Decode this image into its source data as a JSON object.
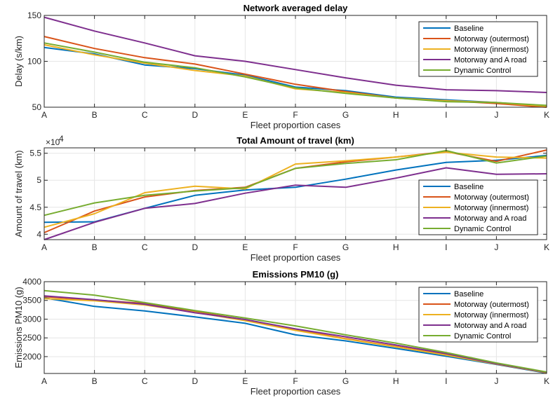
{
  "colors": {
    "series": [
      "#0072BD",
      "#D95319",
      "#EDB120",
      "#7E2F8E",
      "#77AC30"
    ],
    "grid": "#e6e6e6",
    "axis": "#262626"
  },
  "chart_data": [
    {
      "type": "line",
      "title": "Network averaged delay",
      "xlabel": "Fleet proportion cases",
      "ylabel": "Delay (s/km)",
      "categories": [
        "A",
        "B",
        "C",
        "D",
        "E",
        "F",
        "G",
        "H",
        "I",
        "J",
        "K"
      ],
      "ylim": [
        50,
        150
      ],
      "yticks": [
        50,
        100,
        150
      ],
      "yticklabels": [
        "50",
        "100",
        "150"
      ],
      "exponent_label": "",
      "grid": true,
      "legend_position": "top-right",
      "series": [
        {
          "name": "Baseline",
          "values": [
            115,
            108,
            96,
            92,
            85,
            72,
            68,
            61,
            58,
            55,
            51
          ]
        },
        {
          "name": "Motorway (outermost)",
          "values": [
            127,
            114,
            104,
            97,
            86,
            75,
            67,
            60,
            57,
            54,
            50
          ]
        },
        {
          "name": "Motorway (innermost)",
          "values": [
            118,
            107,
            98,
            90,
            84,
            70,
            66,
            60,
            57,
            55,
            51
          ]
        },
        {
          "name": "Motorway and A road",
          "values": [
            148,
            133,
            120,
            106,
            100,
            91,
            82,
            74,
            69,
            68,
            66
          ]
        },
        {
          "name": "Dynamic Control",
          "values": [
            120,
            110,
            99,
            93,
            83,
            71,
            65,
            60,
            56,
            55,
            52
          ]
        }
      ]
    },
    {
      "type": "line",
      "title": "Total Amount of travel (km)",
      "xlabel": "Fleet proportion cases",
      "ylabel": "Amount of travel (km)",
      "categories": [
        "A",
        "B",
        "C",
        "D",
        "E",
        "F",
        "G",
        "H",
        "I",
        "J",
        "K"
      ],
      "ylim": [
        3.9,
        5.6
      ],
      "yticks": [
        4,
        4.5,
        5,
        5.5
      ],
      "yticklabels": [
        "4",
        "4.5",
        "5",
        "5.5"
      ],
      "exponent_label": "×10",
      "exponent_power": "4",
      "grid": true,
      "legend_position": "bottom-right",
      "series": [
        {
          "name": "Baseline",
          "values": [
            4.22,
            4.23,
            4.48,
            4.72,
            4.82,
            4.87,
            5.02,
            5.19,
            5.33,
            5.37,
            5.46
          ]
        },
        {
          "name": "Motorway (outermost)",
          "values": [
            4.03,
            4.43,
            4.69,
            4.81,
            4.87,
            5.22,
            5.34,
            5.43,
            5.53,
            5.35,
            5.56
          ]
        },
        {
          "name": "Motorway (innermost)",
          "values": [
            4.13,
            4.38,
            4.77,
            4.89,
            4.84,
            5.3,
            5.36,
            5.43,
            5.52,
            5.43,
            5.41
          ]
        },
        {
          "name": "Motorway and A road",
          "values": [
            3.9,
            4.22,
            4.48,
            4.57,
            4.76,
            4.91,
            4.87,
            5.04,
            5.23,
            5.11,
            5.12
          ]
        },
        {
          "name": "Dynamic Control",
          "values": [
            4.35,
            4.58,
            4.72,
            4.8,
            4.86,
            5.22,
            5.31,
            5.38,
            5.55,
            5.32,
            5.45
          ]
        }
      ]
    },
    {
      "type": "line",
      "title": "Emissions PM10 (g)",
      "xlabel": "Fleet proportion cases",
      "ylabel": "Emissions PM10 (g)",
      "categories": [
        "A",
        "B",
        "C",
        "D",
        "E",
        "F",
        "G",
        "H",
        "I",
        "J",
        "K"
      ],
      "ylim": [
        1550,
        4000
      ],
      "yticks": [
        2000,
        2500,
        3000,
        3500,
        4000
      ],
      "yticklabels": [
        "2000",
        "2500",
        "3000",
        "3500",
        "4000"
      ],
      "exponent_label": "",
      "grid": true,
      "legend_position": "top-right",
      "series": [
        {
          "name": "Baseline",
          "values": [
            3570,
            3340,
            3220,
            3060,
            2890,
            2580,
            2420,
            2220,
            2010,
            1790,
            1560
          ]
        },
        {
          "name": "Motorway (outermost)",
          "values": [
            3600,
            3510,
            3420,
            3200,
            2980,
            2720,
            2480,
            2270,
            2050,
            1800,
            1570
          ]
        },
        {
          "name": "Motorway (innermost)",
          "values": [
            3550,
            3490,
            3380,
            3180,
            2960,
            2700,
            2470,
            2260,
            2040,
            1800,
            1570
          ]
        },
        {
          "name": "Motorway and A road",
          "values": [
            3620,
            3520,
            3400,
            3170,
            2990,
            2740,
            2530,
            2310,
            2080,
            1810,
            1580
          ]
        },
        {
          "name": "Dynamic Control",
          "values": [
            3760,
            3640,
            3440,
            3230,
            3030,
            2820,
            2580,
            2360,
            2110,
            1830,
            1590
          ]
        }
      ]
    }
  ]
}
